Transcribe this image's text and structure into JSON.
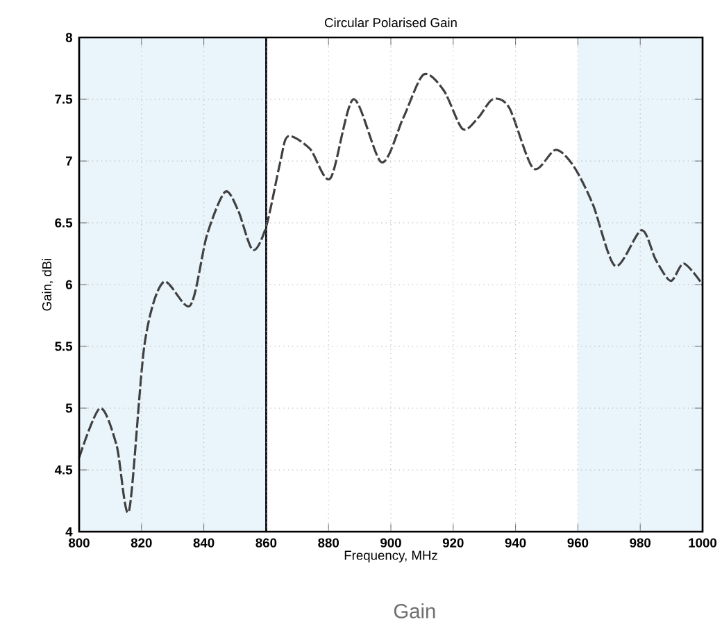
{
  "chart_data": {
    "type": "line",
    "title": "Circular Polarised Gain",
    "xlabel": "Frequency, MHz",
    "ylabel": "Gain, dBi",
    "annotations": [
      "Gain"
    ],
    "x": [
      800,
      806.7,
      812,
      816,
      821,
      827,
      835.6,
      841,
      846.8,
      851,
      855.7,
      860,
      864.5,
      867,
      874,
      880.6,
      888,
      897,
      904,
      910.5,
      917,
      923,
      928,
      932.7,
      938,
      945.7,
      952.8,
      958.6,
      964.8,
      972,
      980.4,
      985,
      989.8,
      994,
      1000
    ],
    "series": [
      {
        "color": "#404040",
        "values": [
          4.6,
          5.0,
          4.7,
          4.17,
          5.52,
          6.02,
          5.83,
          6.4,
          6.75,
          6.6,
          6.28,
          6.47,
          6.99,
          7.2,
          7.1,
          6.86,
          7.5,
          6.99,
          7.35,
          7.7,
          7.57,
          7.26,
          7.35,
          7.5,
          7.43,
          6.94,
          7.09,
          6.96,
          6.65,
          6.15,
          6.44,
          6.2,
          6.03,
          6.17,
          6.0
        ]
      }
    ],
    "xlim": [
      800,
      1000
    ],
    "ylim": [
      4,
      8
    ],
    "xticks": [
      800,
      820,
      840,
      860,
      880,
      900,
      920,
      940,
      960,
      980,
      1000
    ],
    "yticks": [
      4,
      4.5,
      5,
      5.5,
      6,
      6.5,
      7,
      7.5,
      8
    ],
    "grid": true,
    "line_style": "dashed",
    "marker": "none",
    "ref_lines": [
      {
        "axis": "x",
        "value": 860,
        "color": "#000000",
        "line_style": "solid"
      }
    ],
    "bands": [
      {
        "axis": "x",
        "from": 800,
        "to": 860,
        "color": "#eaf4fb"
      },
      {
        "axis": "x",
        "from": 960,
        "to": 1000,
        "color": "#eaf4fb"
      }
    ]
  }
}
